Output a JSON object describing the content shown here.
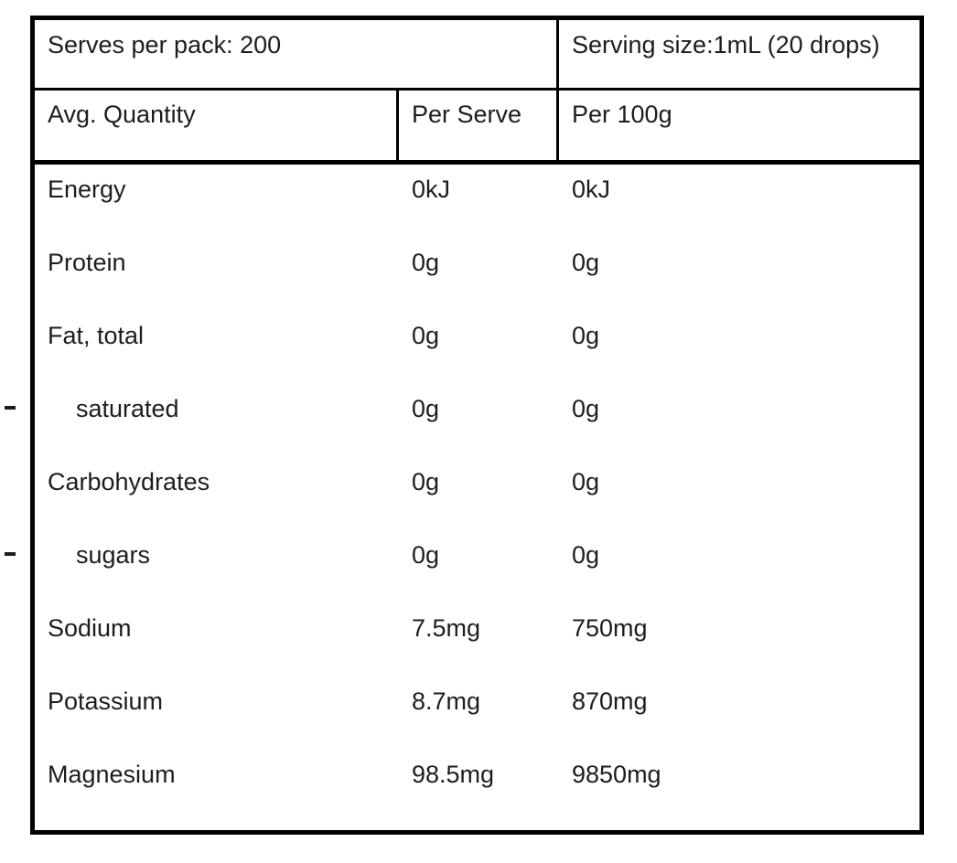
{
  "nutrition_panel": {
    "serves_per_pack": "Serves per pack: 200",
    "serving_size": "Serving size:1mL (20 drops)",
    "columns": {
      "quantity": "Avg. Quantity",
      "per_serve": "Per Serve",
      "per_100g": "Per 100g"
    },
    "rows": [
      {
        "label": "Energy",
        "sub_item": false,
        "per_serve": "0kJ",
        "per_100g": "0kJ"
      },
      {
        "label": "Protein",
        "sub_item": false,
        "per_serve": "0g",
        "per_100g": "0g"
      },
      {
        "label": "Fat, total",
        "sub_item": false,
        "per_serve": "0g",
        "per_100g": "0g"
      },
      {
        "label": "saturated",
        "sub_item": true,
        "per_serve": "0g",
        "per_100g": "0g"
      },
      {
        "label": "Carbohydrates",
        "sub_item": false,
        "per_serve": "0g",
        "per_100g": "0g"
      },
      {
        "label": "sugars",
        "sub_item": true,
        "per_serve": "0g",
        "per_100g": "0g"
      },
      {
        "label": "Sodium",
        "sub_item": false,
        "per_serve": "7.5mg",
        "per_100g": "750mg"
      },
      {
        "label": "Potassium",
        "sub_item": false,
        "per_serve": "8.7mg",
        "per_100g": "870mg"
      },
      {
        "label": "Magnesium",
        "sub_item": false,
        "per_serve": "98.5mg",
        "per_100g": "9850mg"
      }
    ],
    "colors": {
      "border": "#000000",
      "text": "#1d1d1b",
      "background": "#ffffff"
    }
  }
}
